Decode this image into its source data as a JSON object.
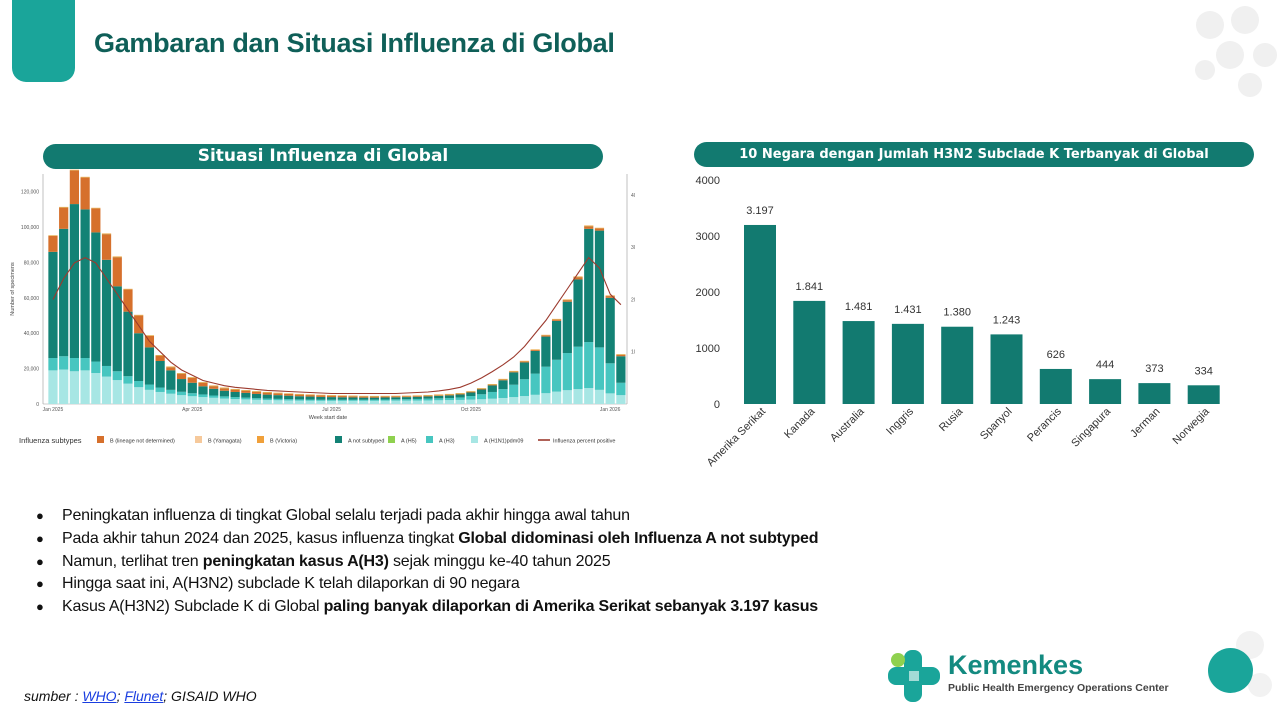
{
  "header": {
    "title": "Gambaran dan Situasi Influenza di Global"
  },
  "left_panel": {
    "heading": "Situasi Influenza di Global"
  },
  "right_panel": {
    "heading": "10 Negara dengan Jumlah H3N2 Subclade K Terbanyak di Global"
  },
  "chart_data": [
    {
      "type": "bar",
      "stacked": true,
      "ylabel": "Number of specimens",
      "y2label": "Influenza positive specimens (%)",
      "xlabel": "Week start date",
      "x_ticks": [
        "Jan 2025",
        "Apr 2025",
        "Jul 2025",
        "Oct 2025",
        "Jan 2026"
      ],
      "x_tick_index": [
        0,
        13,
        26,
        39,
        52
      ],
      "y_ticks": [
        "0",
        "20,000",
        "40,000",
        "60,000",
        "80,000",
        "100,000",
        "120,000"
      ],
      "y_tick_values": [
        0,
        20000,
        40000,
        60000,
        80000,
        100000,
        120000
      ],
      "y2_ticks": [
        "10%",
        "20%",
        "30%",
        "40%"
      ],
      "y2_tick_values": [
        10,
        20,
        30,
        40
      ],
      "ylim": [
        0,
        130000
      ],
      "y2lim": [
        0,
        44
      ],
      "legend_title": "Influenza subtypes",
      "legend": [
        {
          "name": "B (lineage not determined)",
          "color": "#d6702c"
        },
        {
          "name": "B (Yamagata)",
          "color": "#f6c99b"
        },
        {
          "name": "B (Victoria)",
          "color": "#f0a03a"
        },
        {
          "name": "A not subtyped",
          "color": "#138275"
        },
        {
          "name": "A (H5)",
          "color": "#8fd14f"
        },
        {
          "name": "A (H3)",
          "color": "#47c6c0"
        },
        {
          "name": "A (H1N1)pdm09",
          "color": "#a7e6e4"
        },
        {
          "name": "Influenza percent positive",
          "color": "#9c3a2e"
        }
      ],
      "series": [
        {
          "name": "A (H1N1)pdm09",
          "values": [
            19000,
            19500,
            18500,
            19000,
            17500,
            15500,
            13500,
            11500,
            9500,
            8000,
            6800,
            5800,
            5000,
            4400,
            3900,
            3500,
            3100,
            2800,
            2600,
            2400,
            2200,
            2100,
            2000,
            1900,
            1850,
            1800,
            1800,
            1800,
            1800,
            1800,
            1800,
            1850,
            1900,
            1900,
            1950,
            2000,
            2100,
            2200,
            2300,
            2500,
            2700,
            3000,
            3400,
            3900,
            4500,
            5200,
            6100,
            7000,
            7800,
            8400,
            9000,
            8000,
            6000,
            5000
          ]
        },
        {
          "name": "A (H3)",
          "values": [
            7000,
            7500,
            7500,
            7000,
            6500,
            6000,
            5000,
            4200,
            3500,
            3000,
            2500,
            2200,
            1900,
            1700,
            1500,
            1300,
            1200,
            1100,
            1000,
            900,
            850,
            800,
            750,
            700,
            650,
            600,
            600,
            600,
            600,
            600,
            650,
            700,
            750,
            800,
            900,
            1000,
            1100,
            1200,
            1400,
            2000,
            2800,
            3800,
            5000,
            7000,
            9500,
            12000,
            15000,
            18000,
            21000,
            24000,
            26000,
            24000,
            17000,
            7000
          ]
        },
        {
          "name": "A not subtyped",
          "values": [
            60000,
            72000,
            87000,
            84000,
            73000,
            60000,
            48000,
            36500,
            27000,
            21000,
            15000,
            11000,
            7200,
            5900,
            4600,
            3800,
            3200,
            2900,
            2700,
            2400,
            2250,
            2100,
            1950,
            1800,
            1700,
            1600,
            1500,
            1400,
            1300,
            1200,
            1150,
            1150,
            1150,
            1200,
            1250,
            1300,
            1400,
            1500,
            1700,
            2000,
            2700,
            3700,
            5000,
            7000,
            9500,
            12800,
            17000,
            22000,
            29000,
            38000,
            64000,
            66000,
            37000,
            15000
          ]
        },
        {
          "name": "B (lineage not determined)",
          "values": [
            9000,
            12000,
            19000,
            18000,
            13500,
            14500,
            16500,
            12500,
            10000,
            6500,
            3000,
            1800,
            3000,
            2800,
            2000,
            1500,
            1400,
            1300,
            1200,
            1200,
            1100,
            1000,
            950,
            900,
            850,
            800,
            750,
            700,
            650,
            600,
            550,
            500,
            450,
            400,
            400,
            400,
            400,
            400,
            400,
            400,
            400,
            400,
            400,
            400,
            500,
            500,
            600,
            700,
            900,
            1300,
            1500,
            1200,
            1000,
            800
          ]
        },
        {
          "name": "A (H5)",
          "values": [
            100,
            100,
            100,
            100,
            100,
            100,
            100,
            100,
            100,
            100,
            100,
            100,
            100,
            100,
            100,
            100,
            100,
            100,
            100,
            100,
            100,
            100,
            100,
            100,
            100,
            100,
            100,
            100,
            100,
            100,
            100,
            100,
            100,
            100,
            100,
            100,
            100,
            100,
            100,
            100,
            100,
            100,
            100,
            100,
            100,
            100,
            100,
            100,
            100,
            100,
            100,
            100,
            100,
            100
          ]
        },
        {
          "name": "B (Victoria)",
          "values": [
            300,
            300,
            300,
            300,
            300,
            300,
            300,
            300,
            300,
            300,
            300,
            300,
            300,
            300,
            300,
            300,
            300,
            300,
            300,
            300,
            300,
            300,
            300,
            300,
            300,
            300,
            300,
            300,
            300,
            300,
            300,
            300,
            300,
            300,
            300,
            300,
            300,
            300,
            300,
            300,
            300,
            300,
            300,
            300,
            300,
            300,
            300,
            300,
            300,
            300,
            300,
            300,
            300,
            300
          ]
        },
        {
          "name": "Influenza percent positive",
          "axis": "y2",
          "values": [
            20,
            24,
            27,
            28,
            27,
            24,
            21,
            18,
            15,
            12,
            10,
            8,
            6.5,
            5.5,
            4.5,
            4,
            3.5,
            3.2,
            3,
            2.8,
            2.6,
            2.5,
            2.4,
            2.3,
            2.2,
            2.1,
            2,
            2,
            2,
            2,
            2,
            2,
            2,
            2.1,
            2.2,
            2.3,
            2.5,
            2.8,
            3.2,
            4,
            5,
            6.2,
            7.5,
            9,
            11,
            13.5,
            16,
            19,
            22,
            25,
            28,
            26,
            21,
            19
          ]
        }
      ]
    },
    {
      "type": "bar",
      "categories": [
        "Amerika Serikat",
        "Kanada",
        "Australia",
        "Inggris",
        "Rusia",
        "Spanyol",
        "Perancis",
        "Singapura",
        "Jerman",
        "Norwegia"
      ],
      "values": [
        3197,
        1841,
        1481,
        1431,
        1380,
        1243,
        626,
        444,
        373,
        334
      ],
      "data_labels": [
        "3.197",
        "1.841",
        "1.481",
        "1.431",
        "1.380",
        "1.243",
        "626",
        "444",
        "373",
        "334"
      ],
      "y_ticks": [
        "0",
        "1000",
        "2000",
        "3000",
        "4000"
      ],
      "y_tick_values": [
        0,
        1000,
        2000,
        3000,
        4000
      ],
      "ylim": [
        0,
        4000
      ],
      "color": "#127a70",
      "grid": false
    }
  ],
  "bullets": [
    {
      "parts": [
        {
          "t": "Peningkatan influenza di tingkat Global selalu terjadi pada akhir hingga awal tahun",
          "b": false
        }
      ]
    },
    {
      "parts": [
        {
          "t": "Pada akhir tahun 2024 dan 2025, kasus influenza tingkat ",
          "b": false
        },
        {
          "t": "Global didominasi oleh Influenza A not subtyped",
          "b": true
        }
      ]
    },
    {
      "parts": [
        {
          "t": "Namun, terlihat tren ",
          "b": false
        },
        {
          "t": "peningkatan kasus A(H3)",
          "b": true
        },
        {
          "t": " sejak minggu ke-40 tahun 2025",
          "b": false
        }
      ]
    },
    {
      "parts": [
        {
          "t": "Hingga saat ini, A(H3N2) subclade K telah dilaporkan di 90 negara",
          "b": false
        }
      ]
    },
    {
      "parts": [
        {
          "t": "Kasus A(H3N2) Subclade K di Global ",
          "b": false
        },
        {
          "t": "paling banyak dilaporkan di Amerika Serikat sebanyak 3.197 kasus",
          "b": true
        }
      ]
    }
  ],
  "footer": {
    "source_prefix": "sumber : ",
    "links": [
      "WHO",
      "Flunet"
    ],
    "source_suffix": "; GISAID WHO"
  },
  "logo": {
    "name": "Kemenkes",
    "subtitle": "Public Health Emergency Operations Center"
  },
  "colors": {
    "accent": "#1aa59a",
    "dark_teal": "#127a70",
    "title": "#0f5f58"
  }
}
